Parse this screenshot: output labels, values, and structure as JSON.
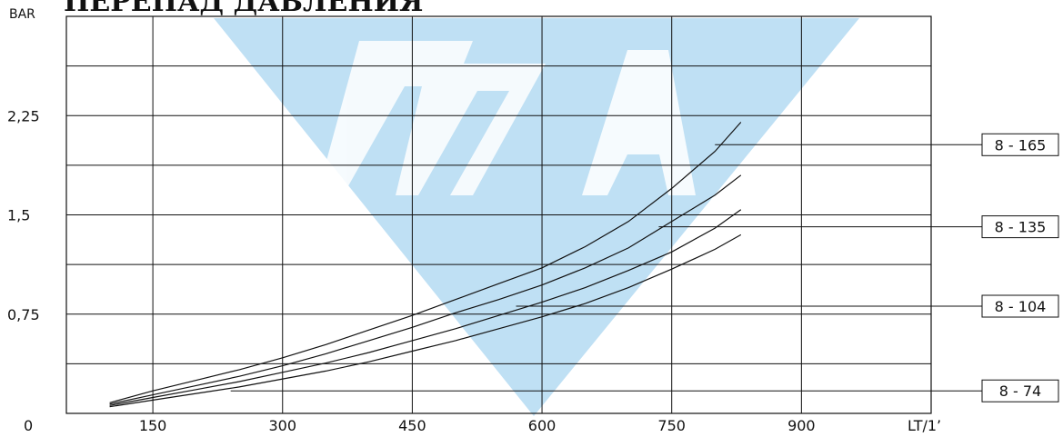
{
  "page": {
    "title": "ПЕРЕПАД ДАВЛЕНИЯ",
    "watermark_color": "#bfe0f4"
  },
  "chart_data": {
    "type": "line",
    "title": "ПЕРЕПАД ДАВЛЕНИЯ",
    "ylabel": "BAR",
    "xlabel": "LT/1’",
    "xlim": [
      50,
      1050
    ],
    "ylim": [
      0,
      3.0
    ],
    "x_ticks": [
      150,
      300,
      450,
      600,
      750,
      900
    ],
    "y_ticks": [
      0.75,
      1.5,
      2.25
    ],
    "x_tick_labels": [
      "150",
      "300",
      "450",
      "600",
      "750",
      "900"
    ],
    "y_tick_labels": [
      "0,75",
      "1,5",
      "2,25"
    ],
    "origin_label": "0",
    "grid": true,
    "series": [
      {
        "name": "8 - 165",
        "label_y": 2.03,
        "x": [
          100,
          150,
          200,
          250,
          300,
          350,
          400,
          450,
          500,
          550,
          600,
          650,
          700,
          750,
          800,
          830
        ],
        "y": [
          0.08,
          0.17,
          0.25,
          0.33,
          0.42,
          0.52,
          0.63,
          0.74,
          0.86,
          0.98,
          1.1,
          1.26,
          1.45,
          1.7,
          1.98,
          2.2
        ]
      },
      {
        "name": "8 - 135",
        "label_y": 1.41,
        "x": [
          100,
          150,
          200,
          250,
          300,
          350,
          400,
          450,
          500,
          550,
          600,
          650,
          700,
          750,
          800,
          830
        ],
        "y": [
          0.07,
          0.14,
          0.21,
          0.28,
          0.36,
          0.45,
          0.55,
          0.65,
          0.76,
          0.86,
          0.97,
          1.1,
          1.25,
          1.45,
          1.65,
          1.8
        ]
      },
      {
        "name": "8 - 104",
        "label_y": 0.81,
        "x": [
          100,
          150,
          200,
          250,
          300,
          350,
          400,
          450,
          500,
          550,
          600,
          650,
          700,
          750,
          800,
          830
        ],
        "y": [
          0.06,
          0.12,
          0.18,
          0.24,
          0.31,
          0.38,
          0.46,
          0.55,
          0.64,
          0.74,
          0.84,
          0.95,
          1.08,
          1.22,
          1.4,
          1.54
        ]
      },
      {
        "name": "8 - 74",
        "label_y": 0.17,
        "x": [
          100,
          150,
          200,
          250,
          300,
          350,
          400,
          450,
          500,
          550,
          600,
          650,
          700,
          750,
          800,
          830
        ],
        "y": [
          0.05,
          0.1,
          0.15,
          0.2,
          0.26,
          0.32,
          0.39,
          0.47,
          0.55,
          0.64,
          0.73,
          0.83,
          0.95,
          1.09,
          1.24,
          1.35
        ]
      }
    ]
  }
}
